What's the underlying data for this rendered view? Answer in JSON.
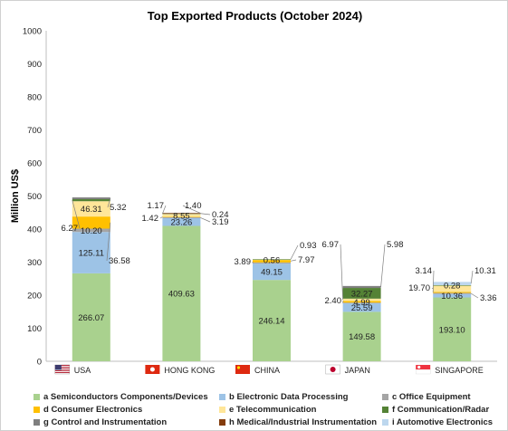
{
  "chart_data": {
    "type": "bar",
    "stacked": true,
    "title": "Top Exported Products (October 2024)",
    "ylabel": "Million US$",
    "ylim": [
      0,
      1000
    ],
    "yticks": [
      "0",
      "100",
      "200",
      "300",
      "400",
      "500",
      "600",
      "700",
      "800",
      "900",
      "1000"
    ],
    "categories": [
      "USA",
      "HONG KONG",
      "CHINA",
      "JAPAN",
      "SINGAPORE"
    ],
    "category_flags": [
      "flag-usa-icon",
      "flag-hong-kong-icon",
      "flag-china-icon",
      "flag-japan-icon",
      "flag-singapore-icon"
    ],
    "series": [
      {
        "name": "a Semiconductors Components/Devices",
        "color": "#a9d18e",
        "values": [
          266.07,
          409.63,
          246.14,
          149.58,
          193.1
        ]
      },
      {
        "name": "b Electronic Data Processing",
        "color": "#9dc3e6",
        "values": [
          125.11,
          23.26,
          49.15,
          25.59,
          10.36
        ]
      },
      {
        "name": "c Office Equipment",
        "color": "#a5a5a5",
        "values": [
          10.2,
          3.19,
          3.89,
          2.4,
          3.36
        ]
      },
      {
        "name": "d Consumer Electronics",
        "color": "#ffc000",
        "values": [
          36.58,
          1.42,
          7.97,
          4.99,
          3.14
        ]
      },
      {
        "name": "e Telecommunication",
        "color": "#ffe699",
        "values": [
          46.31,
          8.55,
          0.56,
          6.97,
          19.7
        ]
      },
      {
        "name": "f Communication/Radar",
        "color": "#548235",
        "values": [
          6.27,
          1.17,
          0.93,
          32.27,
          0.28
        ]
      },
      {
        "name": "g Control and Instrumentation",
        "color": "#7f7f7f",
        "values": [
          5.32,
          0.24,
          0.0,
          5.98,
          0.0
        ]
      },
      {
        "name": "h Medical/Industrial Instrumentation",
        "color": "#843c0c",
        "values": [
          0.0,
          1.4,
          0.0,
          0.0,
          0.0
        ]
      },
      {
        "name": "i Automotive Electronics",
        "color": "#bdd7ee",
        "values": [
          0.0,
          0.0,
          0.0,
          0.0,
          10.31
        ]
      }
    ],
    "data_labels": [
      [
        "266.07",
        "125.11",
        "10.20",
        "36.58",
        "46.31",
        "6.27",
        "5.32",
        "",
        ""
      ],
      [
        "409.63",
        "23.26",
        "3.19",
        "1.42",
        "8.55",
        "1.17",
        "0.24",
        "1.40",
        ""
      ],
      [
        "246.14",
        "49.15",
        "3.89",
        "7.97",
        "0.56",
        "0.93",
        "",
        "",
        ""
      ],
      [
        "149.58",
        "25.59",
        "2.40",
        "4.99",
        "6.97",
        "32.27",
        "5.98",
        "",
        ""
      ],
      [
        "193.10",
        "10.36",
        "3.36",
        "3.14",
        "19.70",
        "0.28",
        "",
        "",
        "10.31"
      ]
    ],
    "grid": false,
    "legend_position": "bottom"
  }
}
